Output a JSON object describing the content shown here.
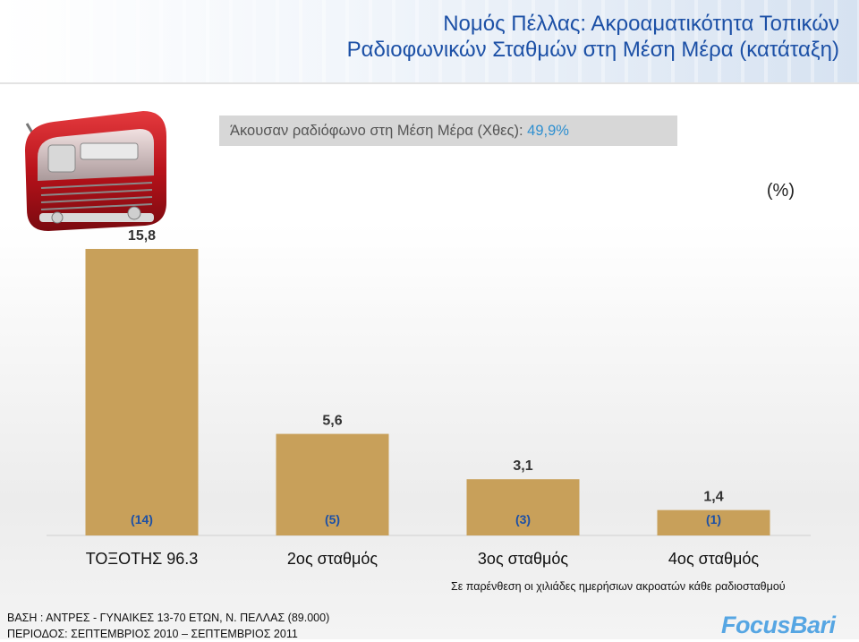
{
  "title_line1": "Νομός Πέλλας: Ακροαματικότητα Τοπικών",
  "title_line2": "Ραδιοφωνικών Σταθμών στη Μέση Μέρα (κατάταξη)",
  "listened": {
    "label": "Άκουσαν ραδιόφωνο στη Μέση Μέρα (Χθες):",
    "value": "49,9%"
  },
  "unit_label": "(%)",
  "chart_data": {
    "type": "bar",
    "categories": [
      "ΤΟΞΟΤΗΣ 96.3",
      "2ος σταθμός",
      "3ος σταθμός",
      "4ος σταθμός"
    ],
    "values": [
      15.8,
      5.6,
      3.1,
      1.4
    ],
    "value_labels": [
      "15,8",
      "5,6",
      "3,1",
      "1,4"
    ],
    "thousands_labels": [
      "(14)",
      "(5)",
      "(3)",
      "(1)"
    ],
    "ylim": [
      0,
      15.8
    ],
    "title": "",
    "xlabel": "",
    "ylabel": "",
    "grid": false,
    "bar_color": "#c8a05a"
  },
  "footnote": "Σε παρένθεση οι χιλιάδες ημερήσιων ακροατών κάθε ραδιοσταθμού",
  "base_line1": "ΒΑΣΗ : ΑΝΤΡΕΣ - ΓΥΝΑΙΚΕΣ 13-70 ΕΤΩΝ, Ν. ΠΕΛΛΑΣ (89.000)",
  "base_line2": "ΠΕΡΙΟΔΟΣ: ΣΕΠΤΕΜΒΡΙΟΣ 2010 – ΣΕΠΤΕΜΒΡΙΟΣ 2011",
  "logo": {
    "part1": "Focus",
    "part2": "Bari"
  },
  "colors": {
    "title": "#1c50a6",
    "listened_value": "#2e8fd0",
    "logo_primary": "#2a73c3",
    "logo_secondary": "#56a6e3",
    "radio_body": "#c0141c"
  },
  "icons": {
    "radio": "retro-radio-icon"
  }
}
